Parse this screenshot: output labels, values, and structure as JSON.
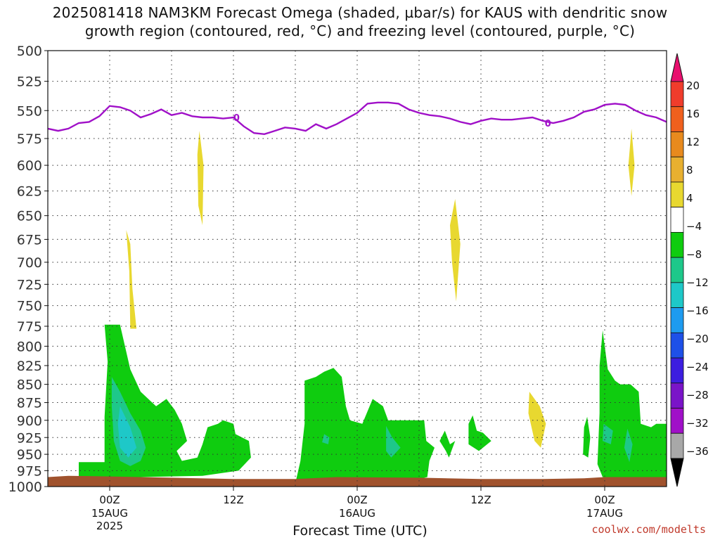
{
  "header": {
    "line1": "2025081418 NAM3KM Forecast Omega (shaded, µbar/s) for KAUS with dendritic snow",
    "line2": "growth region (contoured, red, °C) and freezing level (contoured, purple, °C)"
  },
  "credit": "coolwx.com/modelts",
  "chart_data": {
    "type": "heatmap",
    "title": "2025081418 NAM3KM Forecast Omega (shaded, µbar/s) for KAUS with dendritic snow growth region (contoured, red, °C) and freezing level (contoured, purple, °C)",
    "xlabel": "Forecast Time (UTC)",
    "ylabel": "",
    "x_range_hours": [
      -6,
      54
    ],
    "y_range_mb": [
      500,
      1000
    ],
    "y_scale": "log-pressure (inverted)",
    "grid": true,
    "y_ticks": [
      500,
      525,
      550,
      575,
      600,
      625,
      650,
      675,
      700,
      725,
      750,
      775,
      800,
      825,
      850,
      875,
      900,
      925,
      950,
      975,
      1000
    ],
    "x_ticks": [
      {
        "hour": 0,
        "label": "00Z",
        "sub": [
          "15AUG",
          "2025"
        ]
      },
      {
        "hour": 12,
        "label": "12Z",
        "sub": []
      },
      {
        "hour": 24,
        "label": "00Z",
        "sub": [
          "16AUG"
        ]
      },
      {
        "hour": 36,
        "label": "12Z",
        "sub": []
      },
      {
        "hour": 48,
        "label": "00Z",
        "sub": [
          "17AUG"
        ]
      }
    ],
    "colorbar": {
      "labels": [
        "20",
        "16",
        "12",
        "8",
        "4",
        "−4",
        "−8",
        "−12",
        "−16",
        "−20",
        "−24",
        "−28",
        "−32",
        "−36"
      ],
      "colors": [
        "#e8106e",
        "#f03c2c",
        "#f0601e",
        "#e88a1e",
        "#e8b030",
        "#e8d830",
        "#ffffff",
        "#0fcc0f",
        "#1ec88a",
        "#1ec8c8",
        "#1e9bf0",
        "#1e50e8",
        "#3c1ee0",
        "#7a14c8",
        "#a010c8",
        "#a8a8a8",
        "#000000"
      ]
    },
    "freezing_level": {
      "label": "0",
      "color": "#a010c8",
      "points": [
        [
          -6,
          566
        ],
        [
          -5,
          568
        ],
        [
          -4,
          566
        ],
        [
          -3,
          561
        ],
        [
          -2,
          560
        ],
        [
          -1,
          555
        ],
        [
          0,
          546
        ],
        [
          1,
          547
        ],
        [
          2,
          550
        ],
        [
          3,
          556
        ],
        [
          4,
          553
        ],
        [
          5,
          549
        ],
        [
          6,
          554
        ],
        [
          7,
          552
        ],
        [
          8,
          555
        ],
        [
          9,
          556
        ],
        [
          10,
          556
        ],
        [
          11,
          557
        ],
        [
          12,
          556
        ],
        [
          13,
          564
        ],
        [
          14,
          570
        ],
        [
          15,
          571
        ],
        [
          16,
          568
        ],
        [
          17,
          565
        ],
        [
          18,
          566
        ],
        [
          19,
          568
        ],
        [
          20,
          562
        ],
        [
          21,
          566
        ],
        [
          22,
          562
        ],
        [
          23,
          557
        ],
        [
          24,
          552
        ],
        [
          25,
          544
        ],
        [
          26,
          543
        ],
        [
          27,
          543
        ],
        [
          28,
          544
        ],
        [
          29,
          549
        ],
        [
          30,
          552
        ],
        [
          31,
          554
        ],
        [
          32,
          555
        ],
        [
          33,
          557
        ],
        [
          34,
          560
        ],
        [
          35,
          562
        ],
        [
          36,
          559
        ],
        [
          37,
          557
        ],
        [
          38,
          558
        ],
        [
          39,
          558
        ],
        [
          40,
          557
        ],
        [
          41,
          556
        ],
        [
          42,
          559
        ],
        [
          43,
          561
        ],
        [
          44,
          559
        ],
        [
          45,
          556
        ],
        [
          46,
          551
        ],
        [
          47,
          549
        ],
        [
          48,
          545
        ],
        [
          49,
          544
        ],
        [
          50,
          545
        ],
        [
          51,
          550
        ],
        [
          52,
          554
        ],
        [
          53,
          556
        ],
        [
          54,
          560
        ]
      ]
    },
    "shaded_regions": [
      {
        "name": "omega-weak-rise-a",
        "value": 6,
        "points": [
          [
            1.6,
            665
          ],
          [
            1.9,
            710
          ],
          [
            2.0,
            778
          ],
          [
            2.6,
            778
          ],
          [
            2.2,
            730
          ],
          [
            2.0,
            680
          ]
        ]
      },
      {
        "name": "omega-weak-rise-b",
        "value": 6,
        "points": [
          [
            8.7,
            568
          ],
          [
            9.1,
            600
          ],
          [
            9.0,
            660
          ],
          [
            8.6,
            640
          ],
          [
            8.5,
            590
          ]
        ]
      },
      {
        "name": "omega-weak-rise-c",
        "value": 6,
        "points": [
          [
            33.5,
            633
          ],
          [
            34.0,
            680
          ],
          [
            33.6,
            745
          ],
          [
            33.2,
            700
          ],
          [
            33.0,
            660
          ]
        ]
      },
      {
        "name": "omega-weak-rise-d",
        "value": 6,
        "points": [
          [
            40.7,
            860
          ],
          [
            41.7,
            880
          ],
          [
            42.3,
            905
          ],
          [
            41.8,
            940
          ],
          [
            41.2,
            930
          ],
          [
            40.6,
            890
          ]
        ]
      },
      {
        "name": "omega-weak-rise-e",
        "value": 6,
        "points": [
          [
            50.6,
            566
          ],
          [
            50.9,
            600
          ],
          [
            50.6,
            630
          ],
          [
            50.3,
            600
          ]
        ]
      },
      {
        "name": "omega-sink-1",
        "value": -6,
        "points": [
          [
            -3,
            962
          ],
          [
            -0.5,
            962
          ],
          [
            -0.5,
            895
          ],
          [
            -0.2,
            820
          ],
          [
            -0.5,
            773
          ],
          [
            1.0,
            773
          ],
          [
            2.0,
            830
          ],
          [
            3.0,
            860
          ],
          [
            4.5,
            880
          ],
          [
            5.5,
            870
          ],
          [
            6.3,
            885
          ],
          [
            7.0,
            905
          ],
          [
            7.5,
            930
          ],
          [
            6.5,
            945
          ],
          [
            7.0,
            960
          ],
          [
            8.5,
            955
          ],
          [
            9.0,
            935
          ],
          [
            9.5,
            910
          ],
          [
            10.5,
            905
          ],
          [
            11.0,
            900
          ],
          [
            12.0,
            905
          ],
          [
            12.2,
            920
          ],
          [
            13.5,
            930
          ],
          [
            13.7,
            955
          ],
          [
            12.5,
            975
          ],
          [
            9.0,
            983
          ],
          [
            3.0,
            985
          ],
          [
            -3,
            985
          ]
        ]
      },
      {
        "name": "omega-sink-2",
        "value": -6,
        "points": [
          [
            18.0,
            995
          ],
          [
            18.5,
            960
          ],
          [
            18.9,
            905
          ],
          [
            18.9,
            845
          ],
          [
            20.0,
            840
          ],
          [
            20.8,
            833
          ],
          [
            21.7,
            828
          ],
          [
            22.5,
            840
          ],
          [
            22.9,
            880
          ],
          [
            23.3,
            900
          ],
          [
            24.5,
            905
          ],
          [
            25.5,
            870
          ],
          [
            26.5,
            880
          ],
          [
            27.0,
            900
          ],
          [
            30.5,
            900
          ],
          [
            30.7,
            930
          ],
          [
            31.5,
            940
          ],
          [
            31.0,
            960
          ],
          [
            30.8,
            985
          ],
          [
            28.0,
            995
          ]
        ]
      },
      {
        "name": "omega-sink-3",
        "value": -6,
        "points": [
          [
            32.5,
            915
          ],
          [
            33.0,
            935
          ],
          [
            33.5,
            930
          ],
          [
            32.9,
            955
          ],
          [
            32.6,
            945
          ],
          [
            32.0,
            930
          ]
        ]
      },
      {
        "name": "omega-sink-4",
        "value": -6,
        "points": [
          [
            35.2,
            893
          ],
          [
            35.6,
            915
          ],
          [
            36.2,
            918
          ],
          [
            37.0,
            930
          ],
          [
            35.8,
            945
          ],
          [
            34.8,
            935
          ],
          [
            34.8,
            905
          ]
        ]
      },
      {
        "name": "omega-sink-5",
        "value": -6,
        "points": [
          [
            46.3,
            895
          ],
          [
            46.6,
            925
          ],
          [
            46.4,
            955
          ],
          [
            45.9,
            950
          ],
          [
            46.0,
            910
          ]
        ]
      },
      {
        "name": "omega-sink-6",
        "value": -6,
        "points": [
          [
            47.3,
            965
          ],
          [
            47.5,
            890
          ],
          [
            47.5,
            825
          ],
          [
            47.8,
            780
          ],
          [
            48.3,
            830
          ],
          [
            49.0,
            845
          ],
          [
            49.5,
            850
          ],
          [
            50.5,
            850
          ],
          [
            51.3,
            860
          ],
          [
            51.5,
            905
          ],
          [
            52.5,
            910
          ],
          [
            53.0,
            905
          ],
          [
            54.0,
            905
          ],
          [
            54.0,
            990
          ],
          [
            50.0,
            990
          ],
          [
            47.8,
            985
          ]
        ]
      },
      {
        "name": "omega-sink-7",
        "value": -10,
        "points": [
          [
            0.2,
            840
          ],
          [
            1.0,
            860
          ],
          [
            2.0,
            890
          ],
          [
            3.0,
            915
          ],
          [
            3.5,
            940
          ],
          [
            3.0,
            960
          ],
          [
            2.0,
            968
          ],
          [
            1.0,
            960
          ],
          [
            0.4,
            930
          ],
          [
            0.2,
            880
          ]
        ]
      },
      {
        "name": "omega-sink-8",
        "value": -10,
        "points": [
          [
            20.8,
            920
          ],
          [
            21.3,
            925
          ],
          [
            21.2,
            935
          ],
          [
            20.6,
            932
          ]
        ]
      },
      {
        "name": "omega-sink-9",
        "value": -10,
        "points": [
          [
            26.8,
            908
          ],
          [
            27.4,
            925
          ],
          [
            28.2,
            940
          ],
          [
            27.3,
            955
          ],
          [
            26.8,
            945
          ]
        ]
      },
      {
        "name": "omega-sink-10",
        "value": -10,
        "points": [
          [
            50.2,
            912
          ],
          [
            50.7,
            935
          ],
          [
            50.4,
            962
          ],
          [
            49.9,
            940
          ]
        ]
      },
      {
        "name": "omega-sink-11",
        "value": -10,
        "points": [
          [
            47.9,
            905
          ],
          [
            48.8,
            915
          ],
          [
            48.6,
            935
          ],
          [
            47.8,
            930
          ]
        ]
      },
      {
        "name": "omega-sink-12",
        "value": -14,
        "points": [
          [
            1.0,
            880
          ],
          [
            2.0,
            910
          ],
          [
            2.6,
            940
          ],
          [
            1.8,
            955
          ],
          [
            1.0,
            940
          ],
          [
            0.8,
            905
          ]
        ]
      }
    ],
    "ground": {
      "color": "#a0522d",
      "points": [
        [
          -6,
          985
        ],
        [
          -4,
          983
        ],
        [
          0,
          984
        ],
        [
          12,
          988
        ],
        [
          18,
          988
        ],
        [
          22,
          985
        ],
        [
          30,
          986
        ],
        [
          36,
          988
        ],
        [
          42,
          988
        ],
        [
          46,
          987
        ],
        [
          48,
          985
        ],
        [
          54,
          985
        ]
      ]
    }
  }
}
